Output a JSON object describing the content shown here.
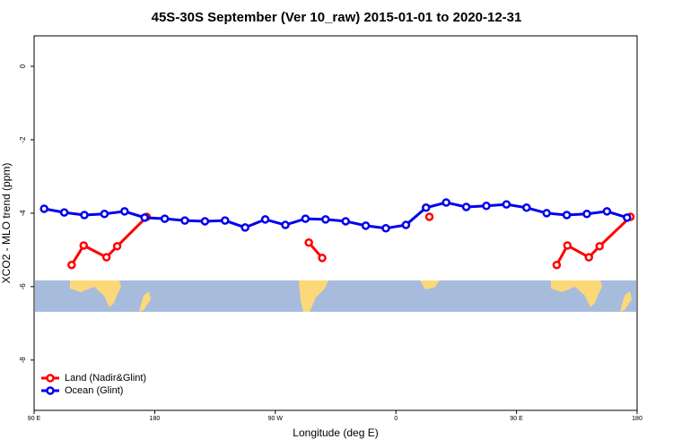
{
  "chart_data": {
    "type": "line",
    "title": "45S-30S September (Ver 10_raw)   2015-01-01 to 2020-12-31",
    "xlabel": "Longitude (deg E)",
    "ylabel": "XCO2 - MLO trend (ppm)",
    "xlim": [
      90,
      540
    ],
    "ylim": [
      -9.37,
      0.83
    ],
    "xticks": [
      {
        "value": 90,
        "label": "90 E"
      },
      180,
      {
        "value": 270,
        "label": "90 W"
      },
      {
        "value": 360,
        "label": "0"
      },
      {
        "value": 450,
        "label": "90 E"
      },
      {
        "value": 540,
        "label": "180"
      }
    ],
    "yticks": [
      0,
      -2,
      -4,
      -6,
      -8
    ],
    "legend": "bottom-left",
    "series": [
      {
        "name": "Land (Nadir&Glint)",
        "color": "#ff0000",
        "x": [
          118,
          127,
          144,
          152,
          174,
          null,
          295,
          305,
          null,
          385,
          null,
          480,
          488,
          504,
          512,
          535
        ],
        "values": [
          -5.41,
          -4.88,
          -5.2,
          -4.9,
          -4.1,
          null,
          -4.8,
          -5.22,
          null,
          -4.1,
          null,
          -5.41,
          -4.88,
          -5.2,
          -4.9,
          -4.1
        ]
      },
      {
        "name": "Ocean (Glint)",
        "color": "#0000ee",
        "x": [
          97.5,
          112.5,
          127.5,
          142.5,
          157.5,
          172.5,
          187.5,
          202.5,
          217.5,
          232.5,
          247.5,
          262.5,
          277.5,
          292.5,
          307.5,
          322.5,
          337.5,
          352.5,
          367.5,
          382.5,
          397.5,
          412.5,
          427.5,
          442.5,
          457.5,
          472.5,
          487.5,
          502.5,
          517.5,
          532.5
        ],
        "values": [
          -3.88,
          -3.98,
          -4.05,
          -4.02,
          -3.95,
          -4.12,
          -4.15,
          -4.2,
          -4.22,
          -4.2,
          -4.39,
          -4.17,
          -4.32,
          -4.15,
          -4.17,
          -4.22,
          -4.34,
          -4.41,
          -4.32,
          -3.85,
          -3.71,
          -3.83,
          -3.8,
          -3.76,
          -3.85,
          -4.0,
          -4.05,
          -4.02,
          -3.95,
          -4.12
        ]
      }
    ]
  }
}
